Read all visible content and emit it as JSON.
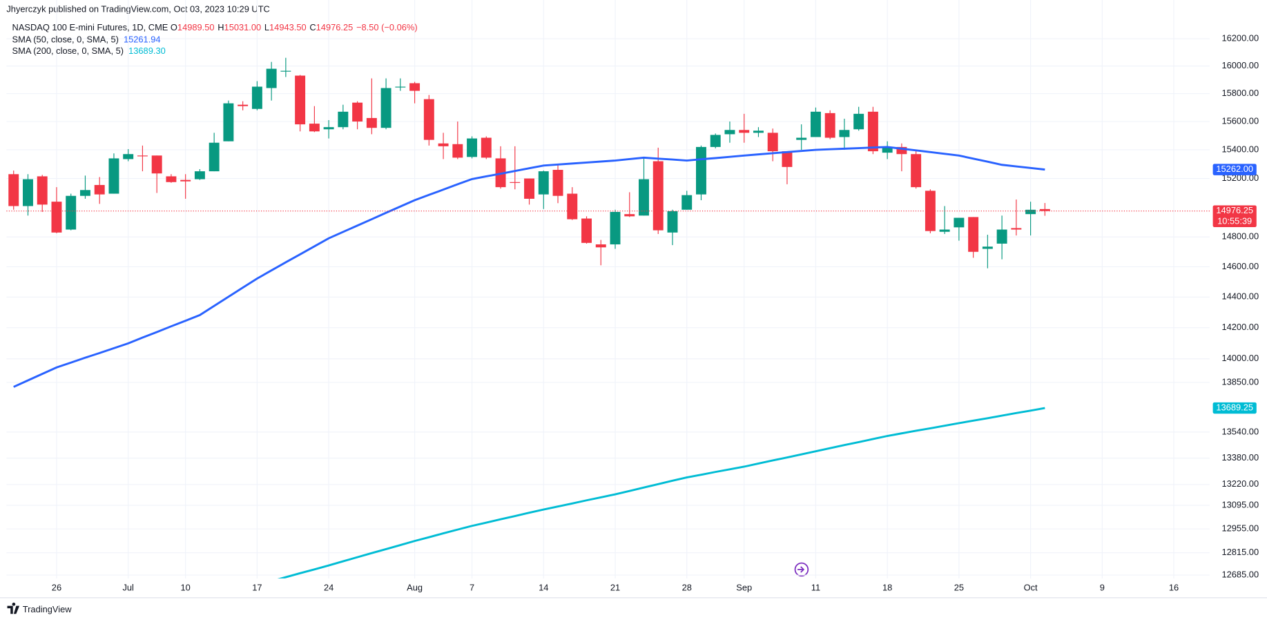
{
  "header": {
    "title": "Jhyerczyk published on TradingView.com, Oct 03, 2023 10:29 UTC"
  },
  "footer": {
    "brand": "TradingView"
  },
  "chart_data": {
    "type": "candlestick",
    "legend": {
      "symbol": "NASDAQ 100 E-mini Futures, 1D, CME",
      "ohlc": [
        {
          "key": "O",
          "value": "14989.50"
        },
        {
          "key": "H",
          "value": "15031.00"
        },
        {
          "key": "L",
          "value": "14943.50"
        },
        {
          "key": "C",
          "value": "14976.25"
        }
      ],
      "change": "−8.50 (−0.06%)"
    },
    "countdown": "10:55:39",
    "up_color": "#089981",
    "down_color": "#f23645",
    "log": true,
    "grid": true,
    "ylim": [
      12666,
      16489
    ],
    "yticks": [
      {
        "value": 16200,
        "label": "16200.00"
      },
      {
        "value": 16000,
        "label": "16000.00"
      },
      {
        "value": 15800,
        "label": "15800.00"
      },
      {
        "value": 15600,
        "label": "15600.00"
      },
      {
        "value": 15400,
        "label": "15400.00"
      },
      {
        "value": 15200,
        "label": "15200.00"
      },
      {
        "value": 14800,
        "label": "14800.00"
      },
      {
        "value": 14600,
        "label": "14600.00"
      },
      {
        "value": 14400,
        "label": "14400.00"
      },
      {
        "value": 14200,
        "label": "14200.00"
      },
      {
        "value": 14000,
        "label": "14000.00"
      },
      {
        "value": 13850,
        "label": "13850.00"
      },
      {
        "value": 13540,
        "label": "13540.00"
      },
      {
        "value": 13380,
        "label": "13380.00"
      },
      {
        "value": 13220,
        "label": "13220.00"
      },
      {
        "value": 13095,
        "label": "13095.00"
      },
      {
        "value": 12955,
        "label": "12955.00"
      },
      {
        "value": 12815,
        "label": "12815.00"
      },
      {
        "value": 12685,
        "label": "12685.00"
      }
    ],
    "categories": [
      null,
      null,
      null,
      "26",
      null,
      null,
      null,
      null,
      "Jul",
      null,
      null,
      null,
      "10",
      null,
      null,
      null,
      null,
      "17",
      null,
      null,
      null,
      null,
      "24",
      null,
      null,
      null,
      null,
      null,
      "Aug",
      null,
      null,
      null,
      "7",
      null,
      null,
      null,
      null,
      "14",
      null,
      null,
      null,
      null,
      "21",
      null,
      null,
      null,
      null,
      "28",
      null,
      null,
      null,
      "Sep",
      null,
      null,
      null,
      null,
      "11",
      null,
      null,
      null,
      null,
      "18",
      null,
      null,
      null,
      null,
      "25",
      null,
      null,
      null,
      null,
      "Oct",
      null,
      null,
      null,
      null,
      "9",
      null,
      null,
      null,
      null,
      "16",
      null,
      null
    ],
    "candles": {
      "open": [
        15230,
        15010,
        15215,
        15040,
        14850,
        15080,
        15155,
        15095,
        15335,
        15360,
        15360,
        15215,
        15190,
        15195,
        15250,
        15460,
        15720,
        15690,
        15840,
        15960,
        15930,
        15585,
        15545,
        15560,
        15735,
        15625,
        15555,
        15845,
        15875,
        15760,
        15445,
        15440,
        15350,
        15485,
        15340,
        15175,
        15200,
        15090,
        15260,
        15095,
        14925,
        14750,
        14750,
        14955,
        14945,
        15320,
        14830,
        14985,
        15090,
        15420,
        15510,
        15540,
        15520,
        15520,
        15390,
        15470,
        15490,
        15660,
        15490,
        15545,
        15670,
        15380,
        15420,
        15370,
        15115,
        14835,
        14865,
        14935,
        14720,
        14755,
        14860,
        14955,
        14989.5,
        null,
        null,
        null,
        null,
        null,
        null,
        null,
        null,
        null,
        null,
        null
      ],
      "high": [
        15255,
        15230,
        15225,
        15140,
        15095,
        15220,
        15210,
        15375,
        15405,
        15430,
        15360,
        15230,
        15230,
        15265,
        15520,
        15750,
        15745,
        15890,
        16030,
        16060,
        15935,
        15710,
        15610,
        15720,
        15745,
        15910,
        15910,
        15910,
        15885,
        15790,
        15520,
        15600,
        15495,
        15495,
        15425,
        15425,
        15200,
        15255,
        15295,
        15140,
        14940,
        14780,
        14985,
        15105,
        15340,
        15415,
        14985,
        15115,
        15430,
        15515,
        15600,
        15655,
        15560,
        15550,
        15390,
        15580,
        15700,
        15680,
        15620,
        15705,
        15705,
        15460,
        15445,
        15400,
        15125,
        15010,
        14930,
        14935,
        14815,
        14945,
        15055,
        15040,
        15031,
        null,
        null,
        null,
        null,
        null,
        null,
        null,
        null,
        null,
        null,
        null
      ],
      "low": [
        14985,
        14945,
        14970,
        14825,
        14845,
        15060,
        15025,
        15095,
        15320,
        15250,
        15100,
        15170,
        15060,
        15190,
        15250,
        15460,
        15680,
        15680,
        15750,
        15920,
        15530,
        15525,
        15480,
        15545,
        15545,
        15510,
        15545,
        15820,
        15730,
        15430,
        15335,
        15335,
        15340,
        15335,
        15130,
        15125,
        15020,
        14990,
        15030,
        14915,
        14755,
        14610,
        14720,
        14935,
        14945,
        14820,
        14745,
        14985,
        15050,
        15410,
        15450,
        15450,
        15490,
        15320,
        15160,
        15400,
        15490,
        15475,
        15400,
        15535,
        15370,
        15335,
        15250,
        15130,
        14825,
        14820,
        14775,
        14660,
        14590,
        14650,
        14810,
        14810,
        14943.5,
        null,
        null,
        null,
        null,
        null,
        null,
        null,
        null,
        null,
        null,
        null
      ],
      "close": [
        15010,
        15195,
        15020,
        14830,
        15080,
        15120,
        15090,
        15340,
        15370,
        15355,
        15235,
        15175,
        15180,
        15250,
        15450,
        15730,
        15710,
        15850,
        15980,
        15965,
        15580,
        15530,
        15560,
        15670,
        15600,
        15555,
        15840,
        15850,
        15820,
        15470,
        15425,
        15345,
        15480,
        15345,
        15140,
        15170,
        15060,
        15250,
        15080,
        14920,
        14760,
        14730,
        14970,
        14940,
        15195,
        14845,
        14975,
        15085,
        15420,
        15505,
        15540,
        15520,
        15535,
        15390,
        15280,
        15485,
        15670,
        15485,
        15540,
        15655,
        15390,
        15415,
        15370,
        15140,
        14840,
        14850,
        14930,
        14700,
        14735,
        14850,
        14850,
        14984.75,
        14976.25,
        null,
        null,
        null,
        null,
        null,
        null,
        null,
        null,
        null,
        null,
        null
      ]
    },
    "series": [
      {
        "name": "SMA (50, close, 0, SMA, 5)",
        "color": "#2962ff",
        "axis_label": "15262.00",
        "values": [
          13822,
          13863,
          13904,
          13945,
          13976,
          14007,
          14037,
          14068,
          14099,
          14136,
          14172,
          14209,
          14245,
          14282,
          14342,
          14402,
          14462,
          14522,
          14576,
          14630,
          14683,
          14737,
          14791,
          14834,
          14877,
          14920,
          14964,
          15007,
          15050,
          15087,
          15123,
          15160,
          15196,
          15215,
          15233,
          15252,
          15271,
          15290,
          15297,
          15304,
          15311,
          15318,
          15325,
          15335,
          15345,
          15338,
          15332,
          15325,
          15334,
          15342,
          15351,
          15360,
          15368,
          15376,
          15384,
          15392,
          15400,
          15404,
          15408,
          15412,
          15416,
          15420,
          15408,
          15396,
          15384,
          15372,
          15360,
          15338,
          15317,
          15295,
          15284,
          15273,
          15261.94,
          null,
          null,
          null,
          null,
          null,
          null,
          null,
          null,
          null,
          null,
          null
        ]
      },
      {
        "name": "SMA (200, close, 0, SMA, 5)",
        "color": "#00bcd4",
        "legend_value": "13689.30",
        "axis_label": "13689.25",
        "values": [
          null,
          null,
          null,
          null,
          null,
          null,
          null,
          null,
          null,
          null,
          null,
          null,
          null,
          null,
          null,
          null,
          null,
          null,
          12650,
          12673,
          12696,
          12718,
          12741,
          12765,
          12789,
          12813,
          12836,
          12860,
          12884,
          12906,
          12929,
          12951,
          12973,
          12992,
          13012,
          13031,
          13051,
          13070,
          13088,
          13106,
          13125,
          13143,
          13161,
          13181,
          13202,
          13222,
          13243,
          13263,
          13279,
          13296,
          13312,
          13328,
          13347,
          13366,
          13384,
          13403,
          13422,
          13441,
          13460,
          13478,
          13497,
          13516,
          13532,
          13548,
          13563,
          13579,
          13595,
          13611,
          13626,
          13642,
          13658,
          13673,
          13689.3,
          null,
          null,
          null,
          null,
          null,
          null,
          null,
          null,
          null,
          null,
          null
        ]
      }
    ]
  }
}
